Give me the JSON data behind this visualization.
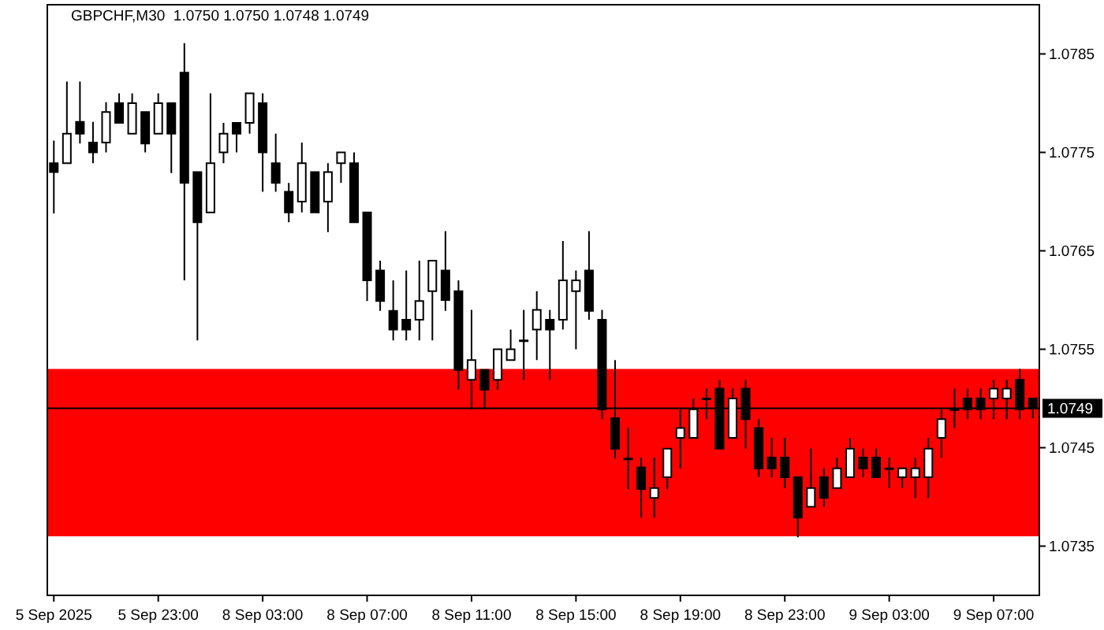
{
  "chart_data": {
    "type": "candlestick",
    "title": "GBPCHF,M30  1.0750 1.0750 1.0748 1.0749",
    "categories": [
      "5 Sep 2025",
      null,
      null,
      null,
      null,
      null,
      null,
      null,
      "5 Sep 23:00",
      null,
      null,
      null,
      null,
      null,
      null,
      null,
      "8 Sep 03:00",
      null,
      null,
      null,
      null,
      null,
      null,
      null,
      "8 Sep 07:00",
      null,
      null,
      null,
      null,
      null,
      null,
      null,
      "8 Sep 11:00",
      null,
      null,
      null,
      null,
      null,
      null,
      null,
      "8 Sep 15:00",
      null,
      null,
      null,
      null,
      null,
      null,
      null,
      "8 Sep 19:00",
      null,
      null,
      null,
      null,
      null,
      null,
      null,
      "8 Sep 23:00",
      null,
      null,
      null,
      null,
      null,
      null,
      null,
      "9 Sep 03:00",
      null,
      null,
      null,
      null,
      null,
      null,
      null,
      "9 Sep 07:00",
      null,
      null,
      null
    ],
    "ohlc": [
      [
        1.07739,
        1.07762,
        1.07688,
        1.0773
      ],
      [
        1.07739,
        1.07822,
        1.07739,
        1.07769
      ],
      [
        1.07781,
        1.07822,
        1.07759,
        1.07769
      ],
      [
        1.0776,
        1.07781,
        1.07739,
        1.0775
      ],
      [
        1.0776,
        1.07801,
        1.0775,
        1.07791
      ],
      [
        1.078,
        1.0781,
        1.0778,
        1.0778
      ],
      [
        1.07769,
        1.0781,
        1.07769,
        1.078
      ],
      [
        1.07791,
        1.07791,
        1.0775,
        1.07759
      ],
      [
        1.07769,
        1.0781,
        1.07769,
        1.078
      ],
      [
        1.078,
        1.078,
        1.07729,
        1.07769
      ],
      [
        1.07831,
        1.07861,
        1.0762,
        1.07719
      ],
      [
        1.0773,
        1.0773,
        1.07559,
        1.07679
      ],
      [
        1.07689,
        1.0781,
        1.07689,
        1.07739
      ],
      [
        1.0775,
        1.0778,
        1.07739,
        1.07769
      ],
      [
        1.0778,
        1.0778,
        1.0775,
        1.07769
      ],
      [
        1.0778,
        1.0781,
        1.07769,
        1.0781
      ],
      [
        1.078,
        1.0781,
        1.0771,
        1.0775
      ],
      [
        1.07739,
        1.07769,
        1.0771,
        1.07719
      ],
      [
        1.0771,
        1.07719,
        1.07679,
        1.07689
      ],
      [
        1.077,
        1.0776,
        1.07689,
        1.07739
      ],
      [
        1.0773,
        1.0773,
        1.07689,
        1.07689
      ],
      [
        1.077,
        1.07739,
        1.07669,
        1.0773
      ],
      [
        1.07739,
        1.0775,
        1.07719,
        1.0775
      ],
      [
        1.07739,
        1.0775,
        1.07679,
        1.07679
      ],
      [
        1.07689,
        1.07689,
        1.07599,
        1.0762
      ],
      [
        1.0763,
        1.0764,
        1.07589,
        1.07599
      ],
      [
        1.07589,
        1.0762,
        1.07559,
        1.0757
      ],
      [
        1.0758,
        1.0763,
        1.07559,
        1.0757
      ],
      [
        1.0758,
        1.0764,
        1.07559,
        1.07599
      ],
      [
        1.07609,
        1.0764,
        1.07559,
        1.0764
      ],
      [
        1.0763,
        1.0767,
        1.07589,
        1.076
      ],
      [
        1.07609,
        1.0762,
        1.07509,
        1.07529
      ],
      [
        1.07519,
        1.0759,
        1.07489,
        1.07539
      ],
      [
        1.07529,
        1.07529,
        1.07489,
        1.07509
      ],
      [
        1.07519,
        1.0755,
        1.07509,
        1.0755
      ],
      [
        1.07539,
        1.0757,
        1.07539,
        1.0755
      ],
      [
        1.07559,
        1.0759,
        1.07519,
        1.07559
      ],
      [
        1.0757,
        1.07609,
        1.07539,
        1.0759
      ],
      [
        1.0758,
        1.0759,
        1.07519,
        1.0757
      ],
      [
        1.0758,
        1.0766,
        1.0757,
        1.0762
      ],
      [
        1.07609,
        1.0763,
        1.0755,
        1.0762
      ],
      [
        1.0763,
        1.0767,
        1.0758,
        1.07589
      ],
      [
        1.0758,
        1.0759,
        1.07479,
        1.07489
      ],
      [
        1.0748,
        1.07539,
        1.07439,
        1.07449
      ],
      [
        1.07439,
        1.0747,
        1.07408,
        1.07439
      ],
      [
        1.0743,
        1.0744,
        1.07379,
        1.07408
      ],
      [
        1.07399,
        1.0744,
        1.07379,
        1.07409
      ],
      [
        1.0742,
        1.07449,
        1.07408,
        1.07449
      ],
      [
        1.0746,
        1.07489,
        1.07429,
        1.0747
      ],
      [
        1.0746,
        1.075,
        1.0746,
        1.07489
      ],
      [
        1.075,
        1.0751,
        1.07479,
        1.075
      ],
      [
        1.0751,
        1.07519,
        1.07449,
        1.07449
      ],
      [
        1.0746,
        1.0751,
        1.0746,
        1.075
      ],
      [
        1.0751,
        1.07519,
        1.07449,
        1.07479
      ],
      [
        1.0747,
        1.07479,
        1.0742,
        1.07429
      ],
      [
        1.0744,
        1.0746,
        1.0742,
        1.07429
      ],
      [
        1.0744,
        1.0746,
        1.07409,
        1.0742
      ],
      [
        1.0742,
        1.0742,
        1.07359,
        1.07379
      ],
      [
        1.0739,
        1.07449,
        1.0739,
        1.07409
      ],
      [
        1.0742,
        1.07429,
        1.0739,
        1.07399
      ],
      [
        1.07409,
        1.0744,
        1.07409,
        1.07429
      ],
      [
        1.0742,
        1.0746,
        1.0742,
        1.07449
      ],
      [
        1.0744,
        1.07449,
        1.0742,
        1.07429
      ],
      [
        1.0744,
        1.07449,
        1.0742,
        1.0742
      ],
      [
        1.07429,
        1.0744,
        1.07409,
        1.07429
      ],
      [
        1.0742,
        1.07429,
        1.07409,
        1.07429
      ],
      [
        1.0742,
        1.0744,
        1.07399,
        1.07429
      ],
      [
        1.0742,
        1.0746,
        1.07399,
        1.07449
      ],
      [
        1.0746,
        1.07489,
        1.0744,
        1.07479
      ],
      [
        1.07489,
        1.0751,
        1.0747,
        1.07489
      ],
      [
        1.075,
        1.0751,
        1.07479,
        1.07489
      ],
      [
        1.075,
        1.0751,
        1.07479,
        1.07489
      ],
      [
        1.075,
        1.07519,
        1.07479,
        1.0751
      ],
      [
        1.075,
        1.07519,
        1.07479,
        1.0751
      ],
      [
        1.07519,
        1.0753,
        1.07479,
        1.07489
      ],
      [
        1.075,
        1.075,
        1.0748,
        1.0749
      ]
    ],
    "ylim": [
      1.073,
      1.079
    ],
    "yticks": [
      1.0735,
      1.0745,
      1.0755,
      1.0765,
      1.0775,
      1.0785
    ],
    "ref_lines": [
      {
        "axis": "y",
        "value": 1.0749,
        "label": "1.0749",
        "color": "#000000"
      }
    ],
    "bands": [
      {
        "axis": "y",
        "from": 1.0736,
        "to": 1.0753,
        "color": "#ff0000"
      }
    ]
  }
}
